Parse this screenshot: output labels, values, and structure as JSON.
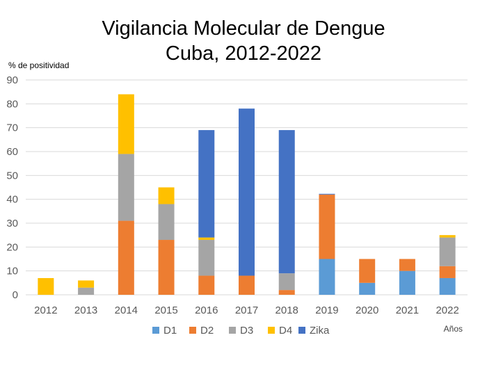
{
  "chart_data": {
    "type": "bar",
    "stacked": true,
    "title_lines": [
      "Vigilancia Molecular de Dengue",
      "Cuba, 2012-2022"
    ],
    "ylabel": "% de positividad",
    "xlabel": "Años",
    "ylim": [
      0,
      90
    ],
    "yticks": [
      0,
      10,
      20,
      30,
      40,
      50,
      60,
      70,
      80,
      90
    ],
    "grid": true,
    "legend_position": "bottom",
    "categories": [
      "2012",
      "2013",
      "2014",
      "2015",
      "2016",
      "2017",
      "2018",
      "2019",
      "2020",
      "2021",
      "2022"
    ],
    "series": [
      {
        "name": "D1",
        "color": "#5b9bd5",
        "values": [
          0,
          0,
          0,
          0,
          0,
          0,
          0,
          15,
          5,
          10,
          7
        ]
      },
      {
        "name": "D2",
        "color": "#ed7d31",
        "values": [
          0,
          0,
          31,
          23,
          8,
          8,
          2,
          27,
          10,
          5,
          5
        ]
      },
      {
        "name": "D3",
        "color": "#a5a5a5",
        "values": [
          0,
          3,
          28,
          15,
          15,
          0,
          7,
          0,
          0,
          0,
          12
        ]
      },
      {
        "name": "D4",
        "color": "#ffc000",
        "values": [
          7,
          3,
          25,
          7,
          1,
          0,
          0,
          0,
          0,
          0,
          1
        ]
      },
      {
        "name": "Zika",
        "color": "#4472c4",
        "values": [
          0,
          0,
          0,
          0,
          45,
          70,
          60,
          0.3,
          0,
          0,
          0
        ]
      }
    ]
  }
}
